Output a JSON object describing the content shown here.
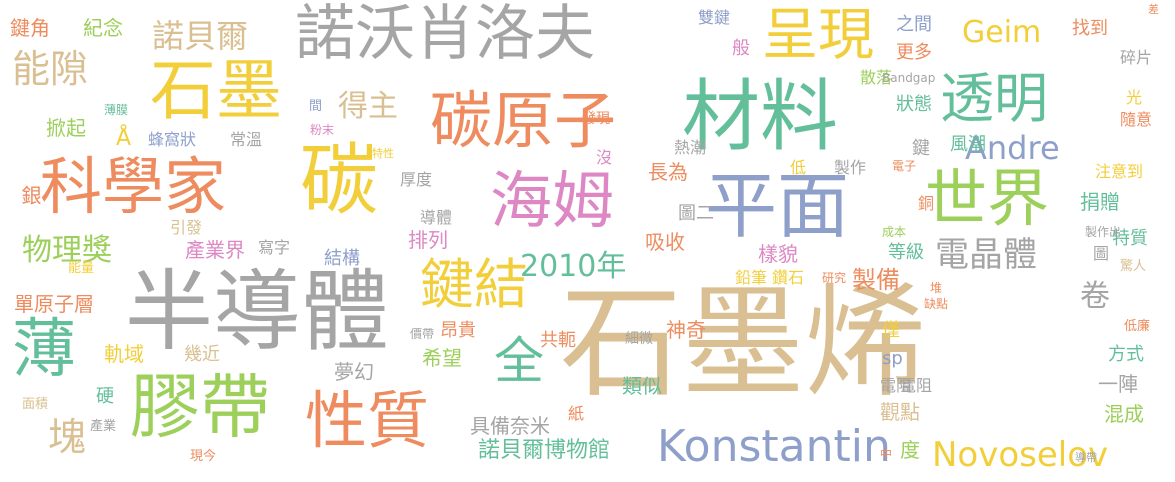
{
  "palette": {
    "tan": "#d9bf91",
    "gray": "#a5a5a5",
    "teal": "#63bf9a",
    "orange": "#ee8c5f",
    "blue": "#8e9fca",
    "pink": "#dd88c4",
    "green": "#9dcf5b",
    "yellow": "#f2cf3a"
  },
  "words": [
    "石墨烯",
    "材料",
    "平面",
    "碳",
    "半導體",
    "諾沃肖洛夫",
    "石墨",
    "科學家",
    "膠帶",
    "性質",
    "碳原子",
    "海姆",
    "世界",
    "透明",
    "呈現",
    "鍵結",
    "薄",
    "全",
    "Konstantin",
    "Novoselov",
    "Andre",
    "Geim",
    "2010年",
    "電晶體",
    "物理獎",
    "得主",
    "能隙",
    "諾貝爾",
    "諾貝爾博物館",
    "製備",
    "單原子層",
    "觀點",
    "塊",
    "鍵角",
    "紀念",
    "掀起",
    "蜂窩狀",
    "常溫",
    "銀",
    "引發",
    "產業界",
    "寫字",
    "結構",
    "排列",
    "吸收",
    "樣貌",
    "鉛筆",
    "鑽石",
    "研究",
    "長為",
    "導體",
    "厚度",
    "風潮",
    "捐贈",
    "注意到",
    "特質",
    "驚人",
    "卷",
    "方式",
    "混成",
    "一陣",
    "低廉",
    "僅",
    "sp",
    "電阻",
    "中",
    "度",
    "神奇",
    "共軛",
    "細微",
    "類似",
    "希望",
    "軌域",
    "幾近",
    "夢幻",
    "昂貴",
    "價帶",
    "具備奈米",
    "紙",
    "硬",
    "面積",
    "產業",
    "現今",
    "能量",
    "更多",
    "狀態",
    "之間",
    "雙鍵",
    "般",
    "散落",
    "Bandgap",
    "找到",
    "碎片",
    "光",
    "隨意",
    "熱潮",
    "發現",
    "沒",
    "低",
    "製作",
    "電子",
    "鍵",
    "銅",
    "圖二",
    "成本",
    "製作出",
    "圖",
    "等級",
    "堆",
    "缺點",
    "薄膜",
    "Å",
    "間",
    "粉末",
    "特性",
    "差",
    "導帶",
    "電阻"
  ]
}
